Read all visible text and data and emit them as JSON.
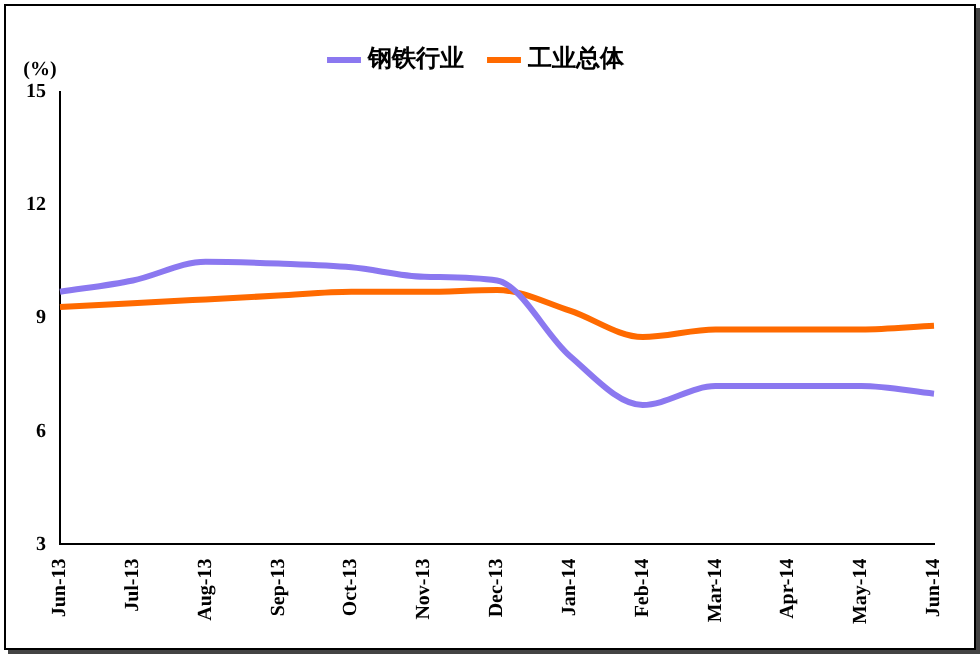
{
  "chart_data": {
    "type": "line",
    "ylabel": "(%)",
    "categories": [
      "Jun-13",
      "Jul-13",
      "Aug-13",
      "Sep-13",
      "Oct-13",
      "Nov-13",
      "Dec-13",
      "Jan-14",
      "Feb-14",
      "Mar-14",
      "Apr-14",
      "May-14",
      "Jun-14"
    ],
    "series": [
      {
        "name": "钢铁行业",
        "color": "#8b78f0",
        "values": [
          9.7,
          10.0,
          10.5,
          10.45,
          10.35,
          10.1,
          10.0,
          8.0,
          6.7,
          7.2,
          7.2,
          7.2,
          7.0
        ]
      },
      {
        "name": "工业总体",
        "color": "#ff6a00",
        "values": [
          9.3,
          9.4,
          9.5,
          9.6,
          9.7,
          9.7,
          9.75,
          9.2,
          8.5,
          8.7,
          8.7,
          8.7,
          8.8
        ]
      }
    ],
    "ylim": [
      3,
      15
    ],
    "yticks": [
      3,
      6,
      9,
      12,
      15
    ],
    "grid": false,
    "legend": "top",
    "marker": "none",
    "line_style": "solid"
  }
}
